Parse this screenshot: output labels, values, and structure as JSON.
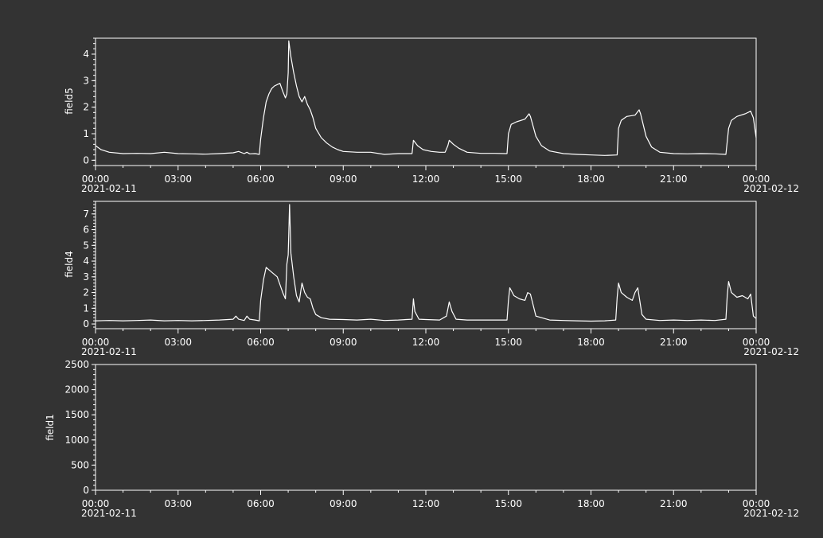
{
  "colors": {
    "background": "#333333",
    "foreground": "#ffffff"
  },
  "x_axis": {
    "tick_labels": [
      "00:00",
      "03:00",
      "06:00",
      "09:00",
      "12:00",
      "15:00",
      "18:00",
      "21:00",
      "00:00"
    ],
    "start_date_label": "2021-02-11",
    "end_date_label": "2021-02-12"
  },
  "chart_data": [
    {
      "type": "line",
      "ylabel": "field5",
      "xlim": [
        0,
        24
      ],
      "ylim": [
        -0.2,
        4.6
      ],
      "yticks": [
        "0",
        "1",
        "2",
        "3",
        "4"
      ],
      "grid": false,
      "series": [
        {
          "x": [
            0,
            0.2,
            0.5,
            1,
            1.5,
            2,
            2.5,
            3,
            3.5,
            4,
            4.5,
            5,
            5.2,
            5.4,
            5.5,
            5.6,
            5.8,
            5.95,
            6.0,
            6.1,
            6.2,
            6.3,
            6.4,
            6.5,
            6.6,
            6.7,
            6.8,
            6.9,
            6.95,
            7.0,
            7.02,
            7.1,
            7.2,
            7.3,
            7.4,
            7.5,
            7.6,
            7.7,
            7.8,
            7.9,
            8.0,
            8.2,
            8.4,
            8.6,
            8.8,
            9.0,
            9.5,
            10,
            10.5,
            11,
            11.5,
            11.55,
            11.7,
            11.9,
            12.2,
            12.5,
            12.7,
            12.8,
            12.85,
            13.0,
            13.2,
            13.5,
            14,
            14.5,
            14.95,
            15.0,
            15.1,
            15.3,
            15.6,
            15.75,
            15.8,
            16.0,
            16.2,
            16.5,
            17,
            17.5,
            18,
            18.5,
            18.95,
            19.0,
            19.1,
            19.3,
            19.6,
            19.75,
            19.8,
            20.0,
            20.2,
            20.5,
            21,
            21.5,
            22,
            22.5,
            22.9,
            23.0,
            23.1,
            23.3,
            23.6,
            23.8,
            23.9,
            24
          ],
          "y": [
            0.55,
            0.4,
            0.3,
            0.25,
            0.26,
            0.25,
            0.3,
            0.25,
            0.24,
            0.23,
            0.25,
            0.28,
            0.33,
            0.25,
            0.3,
            0.24,
            0.25,
            0.22,
            0.8,
            1.6,
            2.2,
            2.5,
            2.7,
            2.8,
            2.85,
            2.9,
            2.6,
            2.35,
            2.5,
            3.3,
            4.5,
            3.9,
            3.3,
            2.8,
            2.4,
            2.2,
            2.4,
            2.1,
            1.9,
            1.6,
            1.2,
            0.85,
            0.65,
            0.5,
            0.4,
            0.33,
            0.3,
            0.3,
            0.22,
            0.25,
            0.25,
            0.75,
            0.55,
            0.4,
            0.33,
            0.3,
            0.3,
            0.55,
            0.75,
            0.6,
            0.45,
            0.3,
            0.26,
            0.26,
            0.25,
            1.0,
            1.35,
            1.45,
            1.55,
            1.75,
            1.65,
            0.9,
            0.55,
            0.35,
            0.25,
            0.22,
            0.2,
            0.18,
            0.2,
            1.2,
            1.5,
            1.65,
            1.7,
            1.9,
            1.75,
            0.9,
            0.5,
            0.3,
            0.25,
            0.24,
            0.25,
            0.24,
            0.22,
            1.2,
            1.5,
            1.65,
            1.75,
            1.85,
            1.6,
            0.85
          ]
        }
      ]
    },
    {
      "type": "line",
      "ylabel": "field4",
      "xlim": [
        0,
        24
      ],
      "ylim": [
        -0.3,
        7.8
      ],
      "yticks": [
        "0",
        "1",
        "2",
        "3",
        "4",
        "5",
        "6",
        "7"
      ],
      "grid": false,
      "series": [
        {
          "x": [
            0,
            0.5,
            1,
            1.5,
            2,
            2.5,
            3,
            3.5,
            4,
            4.5,
            5,
            5.1,
            5.2,
            5.4,
            5.5,
            5.6,
            5.8,
            5.95,
            6.0,
            6.1,
            6.2,
            6.4,
            6.6,
            6.8,
            6.9,
            6.95,
            7.0,
            7.05,
            7.1,
            7.2,
            7.3,
            7.4,
            7.5,
            7.6,
            7.7,
            7.8,
            7.9,
            8.0,
            8.2,
            8.5,
            9,
            9.5,
            10,
            10.5,
            11,
            11.5,
            11.55,
            11.6,
            11.75,
            12,
            12.5,
            12.75,
            12.85,
            12.95,
            13.1,
            13.5,
            14,
            14.5,
            14.95,
            15.0,
            15.05,
            15.2,
            15.4,
            15.6,
            15.7,
            15.8,
            16.0,
            16.5,
            17,
            17.5,
            18,
            18.5,
            18.9,
            18.95,
            19.0,
            19.1,
            19.3,
            19.5,
            19.6,
            19.7,
            19.85,
            20.0,
            20.5,
            21,
            21.5,
            22,
            22.5,
            22.9,
            22.95,
            23.0,
            23.1,
            23.3,
            23.5,
            23.7,
            23.8,
            23.9,
            24
          ],
          "y": [
            0.2,
            0.22,
            0.2,
            0.22,
            0.25,
            0.2,
            0.22,
            0.2,
            0.22,
            0.25,
            0.3,
            0.5,
            0.3,
            0.22,
            0.5,
            0.3,
            0.25,
            0.2,
            1.5,
            2.8,
            3.6,
            3.3,
            3.0,
            2.0,
            1.6,
            3.8,
            4.4,
            7.6,
            4.5,
            3.0,
            1.8,
            1.4,
            2.6,
            2.0,
            1.7,
            1.6,
            1.0,
            0.6,
            0.4,
            0.3,
            0.28,
            0.25,
            0.3,
            0.22,
            0.25,
            0.3,
            1.6,
            0.8,
            0.3,
            0.28,
            0.25,
            0.5,
            1.4,
            0.8,
            0.3,
            0.25,
            0.25,
            0.25,
            0.25,
            1.5,
            2.3,
            1.8,
            1.6,
            1.5,
            2.0,
            1.9,
            0.5,
            0.25,
            0.22,
            0.2,
            0.18,
            0.2,
            0.25,
            1.7,
            2.6,
            2.0,
            1.7,
            1.5,
            2.0,
            2.3,
            0.6,
            0.3,
            0.22,
            0.25,
            0.22,
            0.25,
            0.22,
            0.3,
            1.8,
            2.7,
            2.0,
            1.7,
            1.8,
            1.6,
            1.9,
            0.5,
            0.35
          ]
        }
      ]
    },
    {
      "type": "line",
      "ylabel": "field1",
      "xlim": [
        0,
        24
      ],
      "ylim": [
        0,
        2500
      ],
      "yticks": [
        "0",
        "500",
        "1000",
        "1500",
        "2000",
        "2500"
      ],
      "grid": false,
      "series": []
    }
  ]
}
